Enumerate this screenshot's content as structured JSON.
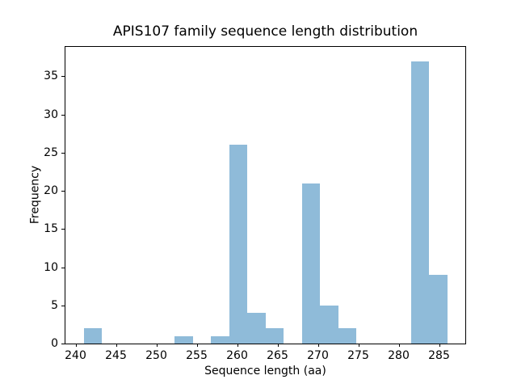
{
  "chart_data": {
    "type": "bar",
    "subtype": "histogram",
    "title": "APIS107 family sequence length distribution",
    "xlabel": "Sequence length (aa)",
    "ylabel": "Frequency",
    "bin_edges": [
      241,
      243.25,
      245.5,
      247.75,
      250,
      252.25,
      254.5,
      256.75,
      259,
      261.25,
      263.5,
      265.75,
      268,
      270.25,
      272.5,
      274.75,
      277,
      279.25,
      281.5,
      283.75,
      286
    ],
    "counts": [
      2,
      0,
      0,
      0,
      0,
      1,
      0,
      1,
      26,
      4,
      2,
      0,
      21,
      5,
      2,
      0,
      0,
      0,
      37,
      9
    ],
    "x_ticks": [
      240,
      245,
      250,
      255,
      260,
      265,
      270,
      275,
      280,
      285
    ],
    "y_ticks": [
      0,
      5,
      10,
      15,
      20,
      25,
      30,
      35
    ],
    "xlim": [
      238.75,
      288.25
    ],
    "ylim": [
      0,
      38.85
    ],
    "grid": false,
    "legend": null,
    "bar_color": "#8FBBD9",
    "spine_color": "#000000",
    "text_color": "#000000",
    "background_color": "#ffffff"
  }
}
